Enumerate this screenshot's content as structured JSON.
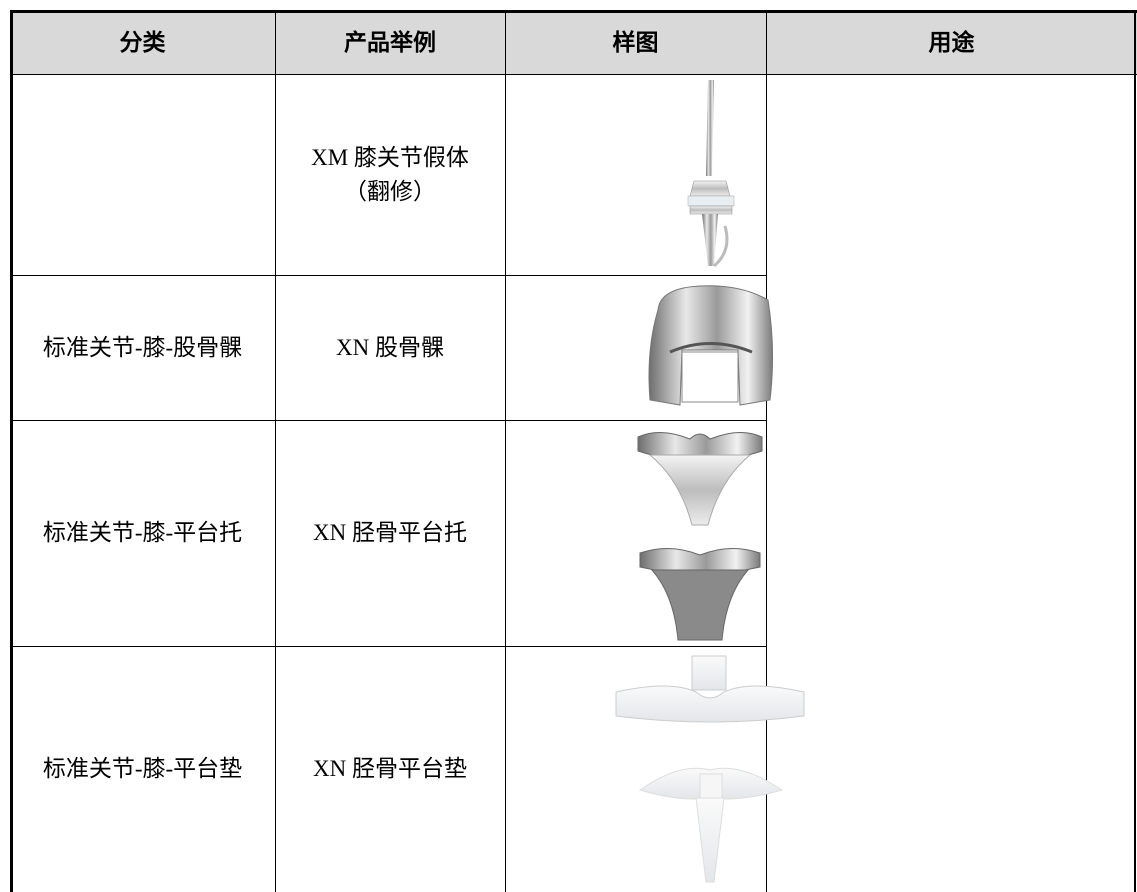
{
  "table": {
    "header": [
      "分类",
      "产品举例",
      "样图",
      "用途"
    ],
    "rows": [
      {
        "product": [
          "XM 膝关节假体",
          "（翻修）"
        ]
      },
      {
        "category": "标准关节-膝-股骨髁",
        "product": [
          "XN 股骨髁"
        ]
      },
      {
        "category": "标准关节-膝-平台托",
        "product": [
          "XN 胫骨平台托"
        ]
      },
      {
        "category": "标准关节-膝-平台垫",
        "product": [
          "XN 胫骨平台垫"
        ]
      }
    ]
  }
}
